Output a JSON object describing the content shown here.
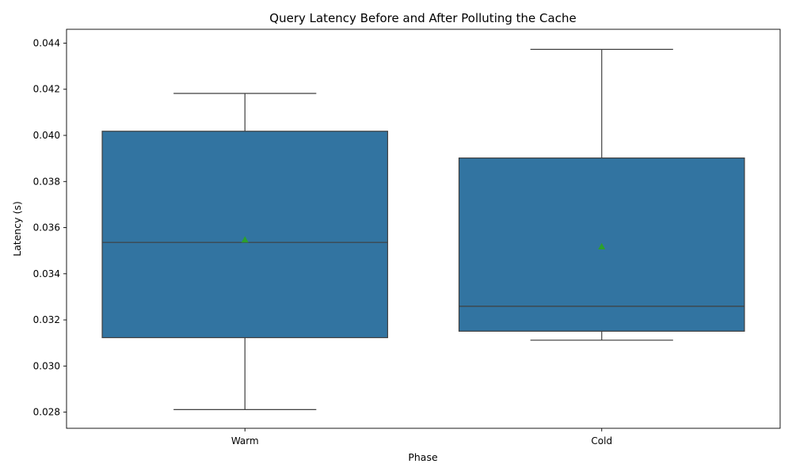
{
  "chart_data": {
    "type": "box",
    "title": "Query Latency Before and After Polluting the Cache",
    "xlabel": "Phase",
    "ylabel": "Latency (s)",
    "ylim": [
      0.0273,
      0.0446
    ],
    "yticks": [
      "0.028",
      "0.030",
      "0.032",
      "0.034",
      "0.036",
      "0.038",
      "0.040",
      "0.042",
      "0.044"
    ],
    "grid": false,
    "legend": "none",
    "box_color": "#3274a1",
    "line_color": "#3f3f3f",
    "mean_color": "#2ca02c",
    "categories": [
      "Warm",
      "Cold"
    ],
    "boxes": [
      {
        "category": "Warm",
        "whisker_low": 0.02811,
        "q1": 0.03123,
        "median": 0.03536,
        "q3": 0.04018,
        "whisker_high": 0.04182,
        "mean": 0.03548
      },
      {
        "category": "Cold",
        "whisker_low": 0.03112,
        "q1": 0.03151,
        "median": 0.03259,
        "q3": 0.03902,
        "whisker_high": 0.04373,
        "mean": 0.03518
      }
    ]
  }
}
